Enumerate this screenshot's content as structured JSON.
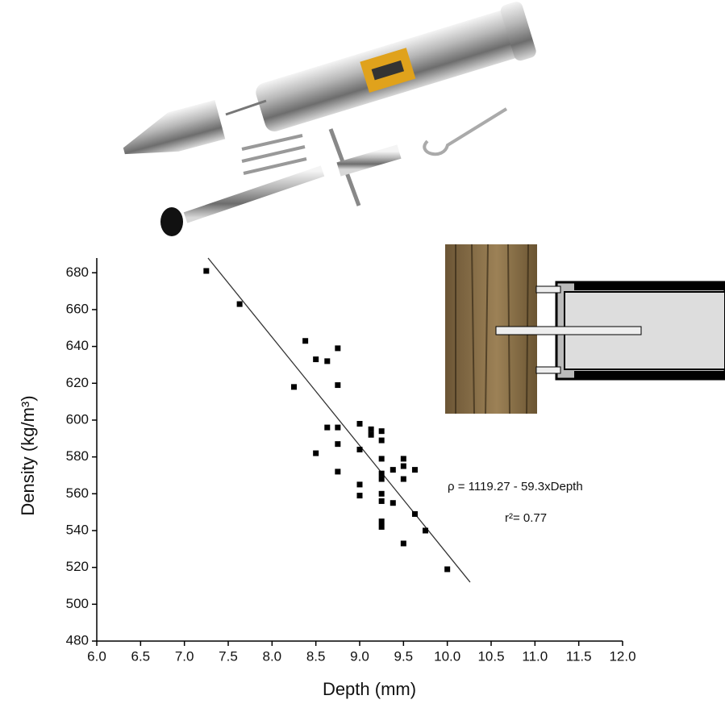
{
  "chart_data": {
    "type": "scatter",
    "x_label": "Depth (mm)",
    "y_label": "Density (kg/m³)",
    "annotations": [
      "ρ = 1119.27 - 59.3xDepth",
      "r²= 0.77"
    ],
    "x": [
      7.25,
      7.63,
      8.25,
      8.38,
      8.5,
      8.63,
      8.63,
      8.75,
      8.75,
      8.5,
      8.75,
      8.75,
      8.75,
      9.0,
      9.0,
      9.0,
      9.0,
      9.13,
      9.13,
      9.25,
      9.25,
      9.25,
      9.25,
      9.25,
      9.25,
      9.25,
      9.25,
      9.25,
      9.38,
      9.38,
      9.5,
      9.5,
      9.5,
      9.5,
      9.63,
      9.63,
      9.75,
      10.0
    ],
    "values": [
      681,
      663,
      618,
      643,
      633,
      632,
      596,
      639,
      619,
      582,
      596,
      587,
      572,
      598,
      584,
      565,
      559,
      595,
      592,
      594,
      589,
      579,
      571,
      568,
      560,
      556,
      545,
      542,
      573,
      555,
      579,
      575,
      568,
      533,
      573,
      549,
      540,
      519
    ],
    "color": "#000000",
    "fit_line": {
      "x": [
        7.27,
        10.26
      ],
      "y": [
        688,
        512
      ],
      "color": "#333333"
    },
    "xlim": [
      6,
      12
    ],
    "ylim": [
      480,
      688
    ],
    "xticks": [
      {
        "value": 6,
        "label": "6.0"
      },
      6.5,
      {
        "value": 7,
        "label": "7.0"
      },
      7.5,
      {
        "value": 8,
        "label": "8.0"
      },
      8.5,
      {
        "value": 9,
        "label": "9.0"
      },
      9.5,
      {
        "value": 10,
        "label": "10.0"
      },
      10.5,
      {
        "value": 11,
        "label": "11.0"
      },
      11.5,
      {
        "value": 12,
        "label": "12.0"
      }
    ],
    "yticks": [
      480,
      500,
      520,
      540,
      560,
      580,
      600,
      620,
      640,
      660,
      680
    ],
    "grid": false
  }
}
